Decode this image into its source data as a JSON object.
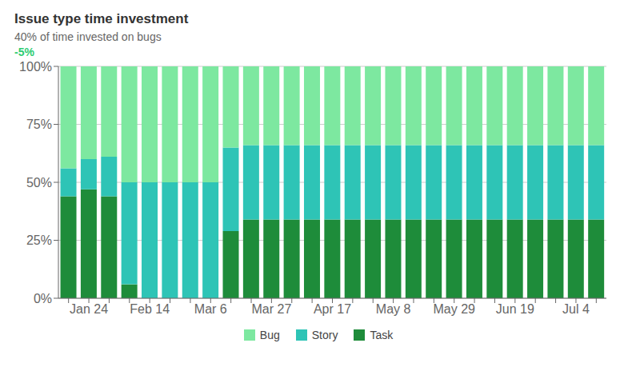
{
  "chart_data": {
    "type": "bar",
    "title": "Issue type time investment",
    "subtitle": "40% of time invested on bugs",
    "annotations": [
      {
        "text": "-5%",
        "color": "#2ecc71"
      }
    ],
    "categories": [
      null,
      "Jan 24",
      null,
      null,
      "Feb 14",
      null,
      null,
      "Mar 6",
      null,
      null,
      "Mar 27",
      null,
      null,
      "Apr 17",
      null,
      null,
      "May 8",
      null,
      null,
      "May 29",
      null,
      null,
      "Jun 19",
      null,
      null,
      "Jul 4",
      null
    ],
    "series": [
      {
        "name": "Task",
        "color": "#1e8c3a",
        "values": [
          44,
          47,
          44,
          6,
          0,
          0,
          0,
          0,
          29,
          34,
          34,
          34,
          34,
          34,
          34,
          34,
          34,
          34,
          34,
          34,
          34,
          34,
          34,
          34,
          34,
          34,
          34
        ]
      },
      {
        "name": "Story",
        "color": "#2ec4b6",
        "values": [
          12,
          13,
          17,
          44,
          50,
          50,
          50,
          50,
          36,
          32,
          32,
          32,
          32,
          32,
          32,
          32,
          32,
          32,
          32,
          32,
          32,
          32,
          32,
          32,
          32,
          32,
          32
        ]
      },
      {
        "name": "Bug",
        "color": "#7de8a0",
        "values": [
          44,
          40,
          39,
          50,
          50,
          50,
          50,
          50,
          35,
          34,
          34,
          34,
          34,
          34,
          34,
          34,
          34,
          34,
          34,
          34,
          34,
          34,
          34,
          34,
          34,
          34,
          34
        ]
      }
    ],
    "stacked": true,
    "ylim": [
      0,
      100
    ],
    "yticks": [
      {
        "value": 0,
        "label": "0%"
      },
      {
        "value": 25,
        "label": "25%"
      },
      {
        "value": 50,
        "label": "50%"
      },
      {
        "value": 75,
        "label": "75%"
      },
      {
        "value": 100,
        "label": "100%"
      }
    ],
    "grid": true,
    "legend": "bottom"
  }
}
